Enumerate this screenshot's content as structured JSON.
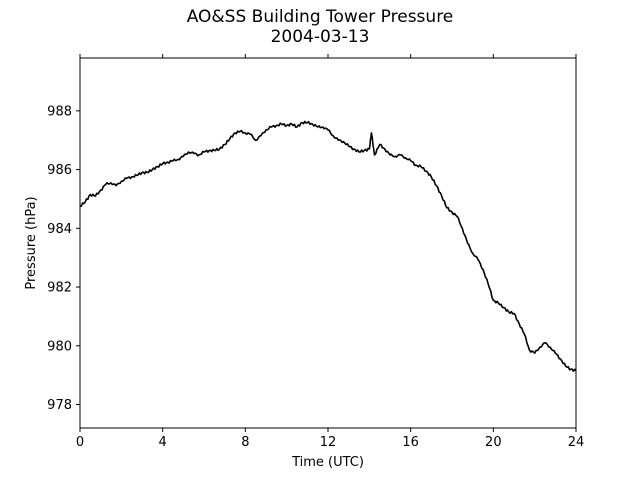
{
  "chart_data": {
    "type": "line",
    "title": "AO&SS Building Tower Pressure",
    "subtitle": "2004-03-13",
    "xlabel": "Time (UTC)",
    "ylabel": "Pressure (hPa)",
    "xlim": [
      0,
      24
    ],
    "ylim": [
      977.2,
      989.8
    ],
    "xticks": [
      "0",
      "4",
      "8",
      "12",
      "16",
      "20",
      "24"
    ],
    "yticks": [
      "978",
      "980",
      "982",
      "984",
      "986",
      "988"
    ],
    "grid": false,
    "series": [
      {
        "color": "#000000",
        "x": [
          0,
          0.25,
          0.5,
          0.75,
          1.0,
          1.25,
          1.5,
          1.75,
          2.0,
          2.25,
          2.5,
          2.75,
          3.0,
          3.25,
          3.5,
          3.75,
          4.0,
          4.25,
          4.5,
          4.75,
          5.0,
          5.25,
          5.5,
          5.75,
          6.0,
          6.25,
          6.5,
          6.75,
          7.0,
          7.25,
          7.5,
          7.75,
          8.0,
          8.25,
          8.5,
          8.75,
          9.0,
          9.25,
          9.5,
          9.75,
          10.0,
          10.25,
          10.5,
          10.75,
          11.0,
          11.25,
          11.5,
          11.75,
          12.0,
          12.25,
          12.5,
          12.75,
          13.0,
          13.25,
          13.5,
          13.75,
          14.0,
          14.1,
          14.25,
          14.5,
          14.75,
          15.0,
          15.25,
          15.5,
          15.75,
          16.0,
          16.25,
          16.5,
          16.75,
          17.0,
          17.25,
          17.5,
          17.75,
          18.0,
          18.25,
          18.5,
          18.75,
          19.0,
          19.25,
          19.5,
          19.75,
          20.0,
          20.25,
          20.5,
          20.75,
          21.0,
          21.25,
          21.5,
          21.75,
          22.0,
          22.25,
          22.5,
          22.75,
          23.0,
          23.25,
          23.5,
          23.75,
          24.0
        ],
        "y": [
          984.75,
          984.9,
          985.15,
          985.1,
          985.3,
          985.5,
          985.55,
          985.45,
          985.6,
          985.7,
          985.75,
          985.8,
          985.9,
          985.9,
          986.0,
          986.1,
          986.2,
          986.25,
          986.3,
          986.35,
          986.45,
          986.6,
          986.55,
          986.5,
          986.6,
          986.65,
          986.65,
          986.7,
          986.85,
          987.05,
          987.25,
          987.3,
          987.25,
          987.2,
          987.0,
          987.15,
          987.35,
          987.45,
          987.5,
          987.55,
          987.5,
          987.55,
          987.45,
          987.6,
          987.6,
          987.55,
          987.45,
          987.45,
          987.35,
          987.15,
          987.0,
          986.95,
          986.8,
          986.7,
          986.6,
          986.65,
          986.7,
          987.25,
          986.5,
          986.85,
          986.7,
          986.5,
          986.45,
          986.5,
          986.4,
          986.3,
          986.15,
          986.1,
          985.95,
          985.75,
          985.45,
          985.1,
          984.7,
          984.55,
          984.4,
          984.0,
          983.5,
          983.15,
          982.95,
          982.6,
          982.1,
          981.55,
          981.45,
          981.3,
          981.15,
          981.1,
          980.75,
          980.4,
          979.85,
          979.75,
          979.95,
          980.1,
          979.95,
          979.75,
          979.55,
          979.3,
          979.2,
          979.15
        ]
      }
    ]
  }
}
